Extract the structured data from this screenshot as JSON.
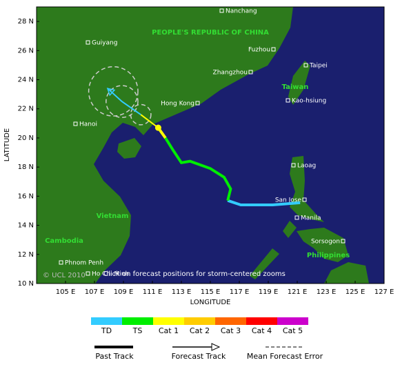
{
  "map": {
    "x_axis_label": "LONGITUDE",
    "y_axis_label": "LATITUDE",
    "lonlim": [
      103,
      127
    ],
    "latlim": [
      10,
      29
    ],
    "lonticks": [
      {
        "value": 105,
        "label": "105 E"
      },
      {
        "value": 107,
        "label": "107 E"
      },
      {
        "value": 109,
        "label": "109 E"
      },
      {
        "value": 111,
        "label": "111 E"
      },
      {
        "value": 113,
        "label": "113 E"
      },
      {
        "value": 115,
        "label": "115 E"
      },
      {
        "value": 117,
        "label": "117 E"
      },
      {
        "value": 119,
        "label": "119 E"
      },
      {
        "value": 121,
        "label": "121 E"
      },
      {
        "value": 123,
        "label": "123 E"
      },
      {
        "value": 125,
        "label": "125 E"
      },
      {
        "value": 127,
        "label": "127 E"
      }
    ],
    "latticks": [
      {
        "value": 10,
        "label": "10 N"
      },
      {
        "value": 12,
        "label": "12 N"
      },
      {
        "value": 14,
        "label": "14 N"
      },
      {
        "value": 16,
        "label": "16 N"
      },
      {
        "value": 18,
        "label": "18 N"
      },
      {
        "value": 20,
        "label": "20 N"
      },
      {
        "value": 22,
        "label": "22 N"
      },
      {
        "value": 24,
        "label": "24 N"
      },
      {
        "value": 26,
        "label": "26 N"
      },
      {
        "value": 28,
        "label": "28 N"
      }
    ],
    "places": [
      "Nanchang",
      "Guiyang",
      "Fuzhou",
      "Taipei",
      "Zhangzhou",
      "Hong Kong",
      "Kao-hsiung",
      "Hanoi",
      "Laoag",
      "San Jose",
      "Manila",
      "Sorsogon",
      "Phnom Penh",
      "Ho Chi Minh"
    ],
    "countries": [
      "PEOPLE'S REPUBLIC OF CHINA",
      "Taiwan",
      "Vietnam",
      "Cambodia",
      "Philippines"
    ],
    "copyright": "© UCL 2010",
    "note": "Click on forecast positions for storm-centered zooms",
    "past_track": [
      {
        "color": "#33ccff",
        "lon": [
          121.2,
          119.3,
          117.1,
          116.2
        ],
        "lat": [
          15.55,
          15.4,
          15.4,
          15.7
        ]
      },
      {
        "color": "#00ee00",
        "lon": [
          116.2,
          116.4,
          115.95,
          115.0,
          113.6,
          113.0,
          112.4,
          111.9
        ],
        "lat": [
          15.7,
          16.5,
          17.3,
          17.9,
          18.4,
          18.3,
          19.2,
          20.0
        ]
      },
      {
        "color": "#ffff00",
        "lon": [
          111.9,
          111.4
        ],
        "lat": [
          20.0,
          20.7
        ]
      }
    ],
    "forecast_track": [
      {
        "color": "#ffff00",
        "lon": [
          111.4,
          110.2
        ],
        "lat": [
          20.7,
          21.6
        ]
      },
      {
        "color": "#33ccff",
        "lon": [
          110.2,
          108.9,
          107.9
        ],
        "lat": [
          21.6,
          22.5,
          23.4
        ]
      }
    ],
    "forecast_error": {
      "lon": [
        110.2,
        108.9,
        108.3
      ],
      "lat": [
        21.6,
        22.5,
        23.2
      ],
      "radius": [
        0.7,
        1.1,
        1.7
      ]
    },
    "current_position": {
      "lon": 111.4,
      "lat": 20.7,
      "color": "#ffff00"
    },
    "legend": {
      "categories": [
        "TD",
        "TS",
        "Cat 1",
        "Cat 2",
        "Cat 3",
        "Cat 4",
        "Cat 5"
      ],
      "colors": [
        "#33ccff",
        "#00ee00",
        "#ffff00",
        "#ffcc00",
        "#ff6600",
        "#ff0000",
        "#cc00cc"
      ],
      "past": "Past Track",
      "forecast": "Forecast Track",
      "error": "Mean Forecast Error"
    }
  }
}
